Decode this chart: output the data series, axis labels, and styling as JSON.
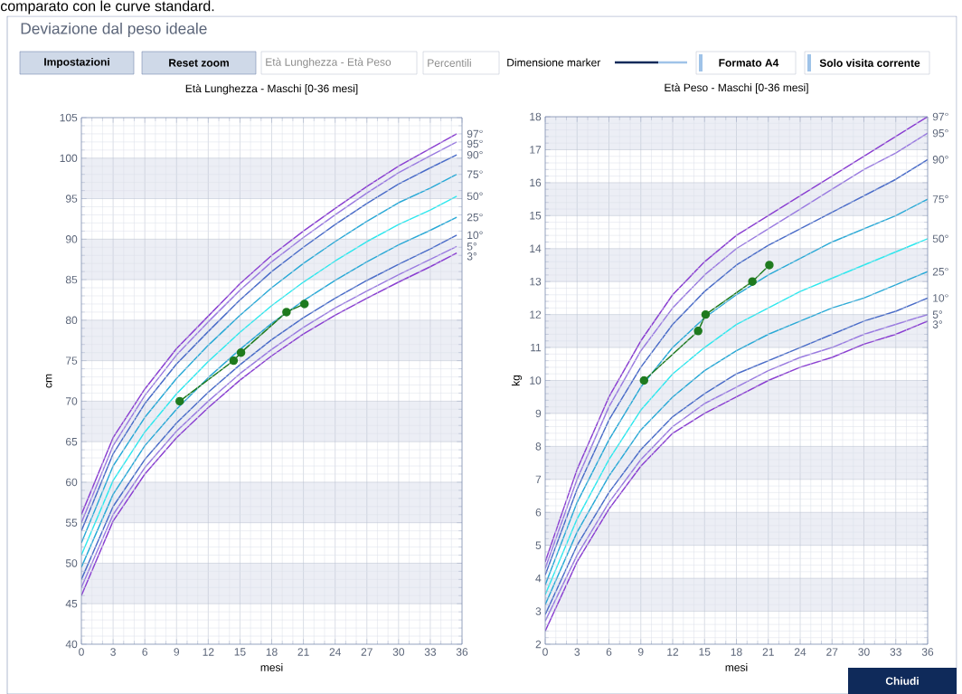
{
  "chart_data": [
    {
      "type": "line",
      "title": "Età Lunghezza - Maschi [0-36 mesi]",
      "xlabel": "mesi",
      "ylabel": "cm",
      "xlim": [
        0,
        36
      ],
      "ylim": [
        40,
        105
      ],
      "xticks": [
        0,
        3,
        6,
        9,
        12,
        15,
        18,
        21,
        24,
        27,
        30,
        33,
        36
      ],
      "yticks": [
        40,
        45,
        50,
        55,
        60,
        65,
        70,
        75,
        80,
        85,
        90,
        95,
        100,
        105
      ],
      "grid": true,
      "annotations": [
        "comparato con le curve standard.",
        "Deviazione dal peso ideale",
        "Impostazioni",
        "Reset zoom",
        "Età Lunghezza - Età Peso",
        "Percentili",
        "Dimensione marker",
        "Formato A4",
        "Solo visita corrente",
        "Chiudi"
      ],
      "bands": [
        {
          "axis": "y",
          "from": 95,
          "to": 100,
          "color": "#eceef5"
        },
        {
          "axis": "y",
          "from": 85,
          "to": 90,
          "color": "#eceef5"
        },
        {
          "axis": "y",
          "from": 75,
          "to": 80,
          "color": "#eceef5"
        },
        {
          "axis": "y",
          "from": 65,
          "to": 70,
          "color": "#eceef5"
        },
        {
          "axis": "y",
          "from": 55,
          "to": 60,
          "color": "#eceef5"
        },
        {
          "axis": "y",
          "from": 45,
          "to": 50,
          "color": "#eceef5"
        }
      ],
      "x": [
        0,
        3,
        6,
        9,
        12,
        15,
        18,
        21,
        24,
        27,
        30,
        33,
        35.5
      ],
      "series": [
        {
          "name": "97°",
          "color": "#8a3fd1",
          "values": [
            56,
            65.5,
            71.5,
            76.5,
            80.5,
            84.5,
            88,
            91,
            93.8,
            96.5,
            99,
            101.2,
            103
          ]
        },
        {
          "name": "95°",
          "color": "#9a7be0",
          "values": [
            55,
            64.5,
            70.7,
            75.7,
            79.8,
            83.7,
            87.2,
            90.2,
            93,
            95.7,
            98.2,
            100.3,
            102
          ]
        },
        {
          "name": "90°",
          "color": "#4a6cc8",
          "values": [
            54,
            63.5,
            69.7,
            74.6,
            78.6,
            82.5,
            86,
            89,
            91.8,
            94.4,
            96.8,
            98.8,
            100.4
          ]
        },
        {
          "name": "75°",
          "color": "#29a9d6",
          "values": [
            52.5,
            62,
            68,
            72.8,
            76.9,
            80.6,
            84,
            87,
            89.7,
            92.2,
            94.5,
            96.3,
            98
          ]
        },
        {
          "name": "50°",
          "color": "#2ee8ee",
          "values": [
            51,
            60.2,
            66.2,
            70.9,
            74.9,
            78.5,
            81.8,
            84.7,
            87.3,
            89.7,
            91.8,
            93.6,
            95.3
          ]
        },
        {
          "name": "25°",
          "color": "#29a9d6",
          "values": [
            49.5,
            58.5,
            64.5,
            69,
            72.9,
            76.4,
            79.6,
            82.4,
            84.9,
            87.2,
            89.3,
            91.1,
            92.7
          ]
        },
        {
          "name": "10°",
          "color": "#4a6cc8",
          "values": [
            48,
            57,
            62.8,
            67.3,
            71.1,
            74.5,
            77.6,
            80.3,
            82.7,
            84.9,
            86.9,
            88.8,
            90.5
          ]
        },
        {
          "name": "5°",
          "color": "#9a7be0",
          "values": [
            47,
            56,
            61.8,
            66.3,
            70,
            73.4,
            76.4,
            79.1,
            81.5,
            83.6,
            85.6,
            87.5,
            89.1
          ]
        },
        {
          "name": "3°",
          "color": "#8a3fd1",
          "values": [
            46,
            55.2,
            61,
            65.5,
            69.2,
            72.6,
            75.6,
            78.3,
            80.6,
            82.7,
            84.7,
            86.6,
            88.3
          ]
        },
        {
          "color": "#1e7a1e",
          "marker": "circle",
          "x": [
            9.3,
            14.4,
            15.1,
            19.4,
            21.1
          ],
          "values": [
            70,
            75,
            76,
            81,
            82
          ]
        }
      ]
    },
    {
      "type": "line",
      "title": "Età Peso - Maschi [0-36 mesi]",
      "xlabel": "mesi",
      "ylabel": "kg",
      "xlim": [
        0,
        36
      ],
      "ylim": [
        2,
        18
      ],
      "xticks": [
        0,
        3,
        6,
        9,
        12,
        15,
        18,
        21,
        24,
        27,
        30,
        33,
        36
      ],
      "yticks": [
        2,
        3,
        4,
        5,
        6,
        7,
        8,
        9,
        10,
        11,
        12,
        13,
        14,
        15,
        16,
        17,
        18
      ],
      "grid": true,
      "bands": [
        {
          "axis": "y",
          "from": 17,
          "to": 18,
          "color": "#eceef5"
        },
        {
          "axis": "y",
          "from": 15,
          "to": 16,
          "color": "#eceef5"
        },
        {
          "axis": "y",
          "from": 13,
          "to": 14,
          "color": "#eceef5"
        },
        {
          "axis": "y",
          "from": 11,
          "to": 12,
          "color": "#eceef5"
        },
        {
          "axis": "y",
          "from": 9,
          "to": 10,
          "color": "#eceef5"
        },
        {
          "axis": "y",
          "from": 7,
          "to": 8,
          "color": "#eceef5"
        },
        {
          "axis": "y",
          "from": 5,
          "to": 6,
          "color": "#eceef5"
        },
        {
          "axis": "y",
          "from": 3,
          "to": 4,
          "color": "#eceef5"
        }
      ],
      "x": [
        0,
        3,
        6,
        9,
        12,
        15,
        18,
        21,
        24,
        27,
        30,
        33,
        36
      ],
      "series": [
        {
          "name": "97°",
          "color": "#8a3fd1",
          "values": [
            4.5,
            7.3,
            9.5,
            11.2,
            12.6,
            13.6,
            14.4,
            15.0,
            15.6,
            16.2,
            16.8,
            17.4,
            18
          ]
        },
        {
          "name": "95°",
          "color": "#9a7be0",
          "values": [
            4.3,
            7.0,
            9.2,
            10.9,
            12.2,
            13.2,
            14.0,
            14.6,
            15.2,
            15.8,
            16.4,
            16.9,
            17.5
          ]
        },
        {
          "name": "90°",
          "color": "#4a6cc8",
          "values": [
            4.1,
            6.7,
            8.8,
            10.4,
            11.7,
            12.7,
            13.5,
            14.1,
            14.6,
            15.1,
            15.6,
            16.1,
            16.7
          ]
        },
        {
          "name": "75°",
          "color": "#29a9d6",
          "values": [
            3.8,
            6.3,
            8.2,
            9.8,
            11.0,
            11.9,
            12.6,
            13.2,
            13.7,
            14.2,
            14.6,
            15.0,
            15.5
          ]
        },
        {
          "name": "50°",
          "color": "#2ee8ee",
          "values": [
            3.5,
            5.8,
            7.6,
            9.1,
            10.2,
            11.0,
            11.7,
            12.2,
            12.7,
            13.1,
            13.5,
            13.9,
            14.3
          ]
        },
        {
          "name": "25°",
          "color": "#29a9d6",
          "values": [
            3.2,
            5.4,
            7.1,
            8.5,
            9.5,
            10.3,
            10.9,
            11.4,
            11.8,
            12.2,
            12.5,
            12.9,
            13.3
          ]
        },
        {
          "name": "10°",
          "color": "#4a6cc8",
          "values": [
            2.9,
            5.0,
            6.6,
            7.9,
            8.9,
            9.6,
            10.2,
            10.6,
            11.0,
            11.4,
            11.8,
            12.1,
            12.5
          ]
        },
        {
          "name": "5°",
          "color": "#9a7be0",
          "values": [
            2.7,
            4.7,
            6.3,
            7.6,
            8.6,
            9.3,
            9.8,
            10.3,
            10.7,
            11.0,
            11.4,
            11.7,
            12.0
          ]
        },
        {
          "name": "3°",
          "color": "#8a3fd1",
          "values": [
            2.4,
            4.5,
            6.1,
            7.4,
            8.4,
            9.0,
            9.5,
            10.0,
            10.4,
            10.7,
            11.1,
            11.4,
            11.8
          ]
        },
        {
          "color": "#1e7a1e",
          "marker": "circle",
          "x": [
            9.3,
            14.4,
            15.1,
            19.5,
            21.1
          ],
          "values": [
            10,
            11.5,
            12,
            13,
            13.5
          ]
        }
      ]
    }
  ]
}
